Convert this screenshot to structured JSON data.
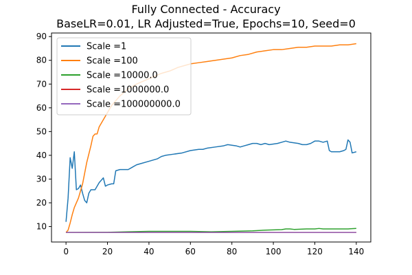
{
  "chart_data": {
    "type": "line",
    "title": "Fully Connected - Accuracy",
    "subtitle": "BaseLR=0.01, LR Adjusted=True, Epochs=10, Seed=0",
    "xlabel": "",
    "ylabel": "",
    "xlim": [
      -7,
      147
    ],
    "ylim": [
      3.5,
      91.5
    ],
    "xticks": [
      0,
      20,
      40,
      60,
      80,
      100,
      120,
      140
    ],
    "yticks": [
      10,
      20,
      30,
      40,
      50,
      60,
      70,
      80,
      90
    ],
    "grid": false,
    "legend_position": "top-left",
    "series": [
      {
        "name": "Scale =1",
        "color": "#1f77b4",
        "points": [
          [
            0,
            12
          ],
          [
            1,
            22
          ],
          [
            2,
            39
          ],
          [
            3,
            34.5
          ],
          [
            4,
            41.5
          ],
          [
            5,
            25.5
          ],
          [
            6,
            26
          ],
          [
            7,
            27.5
          ],
          [
            8,
            24
          ],
          [
            9,
            21
          ],
          [
            10,
            20
          ],
          [
            11,
            24
          ],
          [
            12,
            25.5
          ],
          [
            14,
            25.5
          ],
          [
            16,
            28.5
          ],
          [
            18,
            30.5
          ],
          [
            19,
            27
          ],
          [
            20,
            27.5
          ],
          [
            22,
            28
          ],
          [
            23,
            28
          ],
          [
            24,
            33.5
          ],
          [
            26,
            34
          ],
          [
            30,
            34
          ],
          [
            32,
            35
          ],
          [
            34,
            36
          ],
          [
            36,
            36.5
          ],
          [
            40,
            37.5
          ],
          [
            42,
            38
          ],
          [
            44,
            38.5
          ],
          [
            46,
            39.5
          ],
          [
            48,
            40
          ],
          [
            52,
            40.5
          ],
          [
            56,
            41
          ],
          [
            60,
            42
          ],
          [
            64,
            42.5
          ],
          [
            66,
            42.5
          ],
          [
            68,
            43
          ],
          [
            72,
            43.5
          ],
          [
            76,
            44
          ],
          [
            78,
            44.5
          ],
          [
            82,
            44
          ],
          [
            84,
            43.5
          ],
          [
            86,
            44
          ],
          [
            88,
            44.5
          ],
          [
            90,
            45
          ],
          [
            92,
            45
          ],
          [
            94,
            44.5
          ],
          [
            96,
            45
          ],
          [
            98,
            44.5
          ],
          [
            102,
            45
          ],
          [
            104,
            45.5
          ],
          [
            106,
            46
          ],
          [
            108,
            45.5
          ],
          [
            112,
            45
          ],
          [
            114,
            44.5
          ],
          [
            116,
            44.5
          ],
          [
            118,
            45
          ],
          [
            120,
            46
          ],
          [
            122,
            46
          ],
          [
            124,
            45.5
          ],
          [
            126,
            46
          ],
          [
            127,
            42
          ],
          [
            128,
            41.5
          ],
          [
            132,
            41.5
          ],
          [
            134,
            42
          ],
          [
            135,
            42.5
          ],
          [
            136,
            46.5
          ],
          [
            137,
            45.5
          ],
          [
            138,
            41
          ],
          [
            140,
            41.5
          ]
        ]
      },
      {
        "name": "Scale =100",
        "color": "#ff7f0e",
        "points": [
          [
            0,
            7.5
          ],
          [
            1,
            8.5
          ],
          [
            2,
            11.5
          ],
          [
            3,
            15
          ],
          [
            4,
            18
          ],
          [
            6,
            22
          ],
          [
            8,
            28
          ],
          [
            10,
            37
          ],
          [
            12,
            44
          ],
          [
            13,
            48
          ],
          [
            14,
            49
          ],
          [
            15,
            49
          ],
          [
            16,
            52
          ],
          [
            18,
            55
          ],
          [
            20,
            58
          ],
          [
            22,
            61
          ],
          [
            24,
            63
          ],
          [
            26,
            65
          ],
          [
            28,
            66.5
          ],
          [
            30,
            68
          ],
          [
            34,
            70
          ],
          [
            38,
            71.5
          ],
          [
            42,
            73
          ],
          [
            46,
            74.5
          ],
          [
            50,
            75.5
          ],
          [
            54,
            77
          ],
          [
            58,
            78
          ],
          [
            60,
            78.5
          ],
          [
            64,
            79
          ],
          [
            68,
            79.5
          ],
          [
            72,
            80
          ],
          [
            76,
            80.5
          ],
          [
            80,
            81
          ],
          [
            84,
            82
          ],
          [
            88,
            82.5
          ],
          [
            92,
            83.5
          ],
          [
            96,
            84
          ],
          [
            100,
            84.5
          ],
          [
            104,
            84.5
          ],
          [
            108,
            85
          ],
          [
            112,
            85.5
          ],
          [
            116,
            85.5
          ],
          [
            120,
            86
          ],
          [
            124,
            86
          ],
          [
            128,
            86
          ],
          [
            132,
            86.5
          ],
          [
            136,
            86.5
          ],
          [
            140,
            87
          ]
        ]
      },
      {
        "name": "Scale =10000.0",
        "color": "#2ca02c",
        "points": [
          [
            0,
            7.5
          ],
          [
            20,
            7.6
          ],
          [
            30,
            7.8
          ],
          [
            40,
            8
          ],
          [
            50,
            8
          ],
          [
            60,
            8
          ],
          [
            70,
            7.8
          ],
          [
            80,
            8
          ],
          [
            90,
            8.2
          ],
          [
            96,
            8.5
          ],
          [
            100,
            8.6
          ],
          [
            104,
            8.7
          ],
          [
            106,
            9
          ],
          [
            108,
            9
          ],
          [
            110,
            8.8
          ],
          [
            116,
            9
          ],
          [
            120,
            9
          ],
          [
            122,
            9.2
          ],
          [
            124,
            9
          ],
          [
            130,
            9
          ],
          [
            136,
            9
          ],
          [
            140,
            9.2
          ]
        ]
      },
      {
        "name": "Scale =1000000.0",
        "color": "#d62728",
        "points": [
          [
            0,
            7.5
          ],
          [
            140,
            7.5
          ]
        ]
      },
      {
        "name": "Scale =100000000.0",
        "color": "#9467bd",
        "points": [
          [
            0,
            7.5
          ],
          [
            140,
            7.5
          ]
        ]
      }
    ]
  }
}
